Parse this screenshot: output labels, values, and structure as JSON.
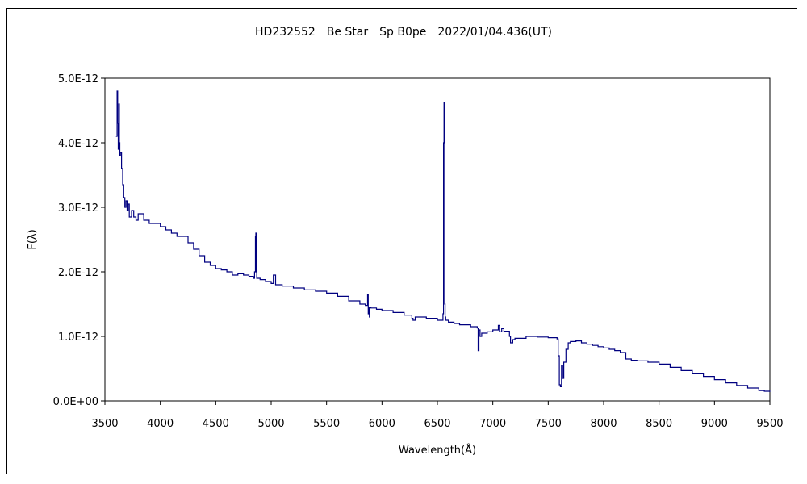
{
  "chart_data": {
    "type": "line",
    "title": "HD232552　Be Star　Sp B0pe　2022/01/04.436(UT)",
    "xlabel": "Wavelength(Å)",
    "ylabel": "F(λ)",
    "xlim": [
      3500,
      9500
    ],
    "ylim": [
      0,
      5e-12
    ],
    "x_ticks": [
      3500,
      4000,
      4500,
      5000,
      5500,
      6000,
      6500,
      7000,
      7500,
      8000,
      8500,
      9000,
      9500
    ],
    "x_tick_labels": [
      "3500",
      "4000",
      "4500",
      "5000",
      "5500",
      "6000",
      "6500",
      "7000",
      "7500",
      "8000",
      "8500",
      "9000",
      "9500"
    ],
    "y_ticks": [
      0,
      1e-12,
      2e-12,
      3e-12,
      4e-12,
      5e-12
    ],
    "y_tick_labels": [
      "0.0E+00",
      "1.0E-12",
      "2.0E-12",
      "3.0E-12",
      "4.0E-12",
      "5.0E-12"
    ],
    "grid": false,
    "legend": "none",
    "line_color": "#000080",
    "series": [
      {
        "x": [
          3600,
          3610,
          3615,
          3620,
          3625,
          3630,
          3635,
          3640,
          3650,
          3660,
          3670,
          3680,
          3690,
          3700,
          3710,
          3720,
          3740,
          3760,
          3780,
          3800,
          3850,
          3900,
          3950,
          4000,
          4050,
          4100,
          4150,
          4200,
          4250,
          4300,
          4350,
          4400,
          4450,
          4500,
          4550,
          4600,
          4650,
          4700,
          4750,
          4800,
          4840,
          4850,
          4858,
          4862,
          4866,
          4870,
          4900,
          4950,
          5000,
          5020,
          5040,
          5100,
          5200,
          5300,
          5400,
          5500,
          5600,
          5700,
          5800,
          5850,
          5870,
          5876,
          5880,
          5886,
          5890,
          5900,
          5950,
          6000,
          6100,
          6200,
          6270,
          6280,
          6300,
          6400,
          6500,
          6540,
          6550,
          6555,
          6560,
          6563,
          6566,
          6570,
          6575,
          6580,
          6600,
          6650,
          6700,
          6800,
          6860,
          6868,
          6875,
          6885,
          6900,
          6950,
          7000,
          7050,
          7060,
          7080,
          7100,
          7150,
          7160,
          7180,
          7200,
          7250,
          7300,
          7400,
          7500,
          7580,
          7590,
          7600,
          7610,
          7620,
          7630,
          7640,
          7660,
          7680,
          7700,
          7750,
          7800,
          7850,
          7900,
          7950,
          8000,
          8050,
          8100,
          8150,
          8200,
          8250,
          8300,
          8400,
          8500,
          8600,
          8700,
          8800,
          8900,
          9000,
          9100,
          9200,
          9300,
          9400,
          9450,
          9500
        ],
        "values": [
          4.1e-12,
          4.8e-12,
          4.3e-12,
          3.9e-12,
          4.6e-12,
          4e-12,
          3.8e-12,
          3.85e-12,
          3.6e-12,
          3.35e-12,
          3.15e-12,
          3e-12,
          3.1e-12,
          2.95e-12,
          3.05e-12,
          2.85e-12,
          2.95e-12,
          2.85e-12,
          2.8e-12,
          2.9e-12,
          2.8e-12,
          2.75e-12,
          2.75e-12,
          2.7e-12,
          2.65e-12,
          2.6e-12,
          2.55e-12,
          2.55e-12,
          2.45e-12,
          2.35e-12,
          2.25e-12,
          2.15e-12,
          2.1e-12,
          2.05e-12,
          2.03e-12,
          2e-12,
          1.95e-12,
          1.97e-12,
          1.95e-12,
          1.93e-12,
          1.9e-12,
          2e-12,
          2.55e-12,
          2.6e-12,
          2e-12,
          1.9e-12,
          1.88e-12,
          1.85e-12,
          1.82e-12,
          1.95e-12,
          1.8e-12,
          1.78e-12,
          1.75e-12,
          1.72e-12,
          1.7e-12,
          1.67e-12,
          1.62e-12,
          1.55e-12,
          1.5e-12,
          1.48e-12,
          1.65e-12,
          1.35e-12,
          1.45e-12,
          1.3e-12,
          1.45e-12,
          1.44e-12,
          1.42e-12,
          1.4e-12,
          1.37e-12,
          1.33e-12,
          1.28e-12,
          1.25e-12,
          1.3e-12,
          1.28e-12,
          1.25e-12,
          1.25e-12,
          1.35e-12,
          4e-12,
          4.62e-12,
          4.3e-12,
          1.5e-12,
          1.3e-12,
          1.25e-12,
          1.25e-12,
          1.22e-12,
          1.2e-12,
          1.18e-12,
          1.15e-12,
          1.13e-12,
          7.8e-13,
          1.1e-12,
          1e-12,
          1.05e-12,
          1.07e-12,
          1.1e-12,
          1.17e-12,
          1.07e-12,
          1.12e-12,
          1.08e-12,
          1e-12,
          9e-13,
          9.5e-13,
          9.7e-13,
          9.7e-13,
          1e-12,
          9.9e-13,
          9.8e-13,
          9.6e-13,
          7e-13,
          2.5e-13,
          2.2e-13,
          5.5e-13,
          3.5e-13,
          6e-13,
          8e-13,
          9e-13,
          9.2e-13,
          9.3e-13,
          9e-13,
          8.8e-13,
          8.6e-13,
          8.4e-13,
          8.2e-13,
          8e-13,
          7.8e-13,
          7.5e-13,
          6.5e-13,
          6.3e-13,
          6.2e-13,
          6e-13,
          5.7e-13,
          5.2e-13,
          4.7e-13,
          4.2e-13,
          3.8e-13,
          3.3e-13,
          2.8e-13,
          2.4e-13,
          2e-13,
          1.6e-13,
          1.5e-13,
          1.4e-13
        ]
      }
    ]
  }
}
